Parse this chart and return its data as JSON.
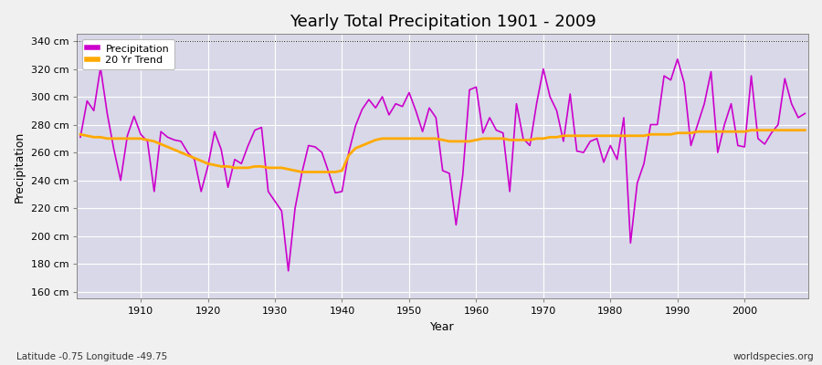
{
  "title": "Yearly Total Precipitation 1901 - 2009",
  "xlabel": "Year",
  "ylabel": "Precipitation",
  "footer_left": "Latitude -0.75 Longitude -49.75",
  "footer_right": "worldspecies.org",
  "ylim": [
    155,
    345
  ],
  "yticks": [
    160,
    180,
    200,
    220,
    240,
    260,
    280,
    300,
    320,
    340
  ],
  "ytick_labels": [
    "160 cm",
    "180 cm",
    "200 cm",
    "220 cm",
    "240 cm",
    "260 cm",
    "280 cm",
    "300 cm",
    "320 cm",
    "340 cm"
  ],
  "xlim": [
    1900.5,
    2009.5
  ],
  "xticks": [
    1910,
    1920,
    1930,
    1940,
    1950,
    1960,
    1970,
    1980,
    1990,
    2000
  ],
  "precip_color": "#cc00cc",
  "trend_color": "#ffaa00",
  "fig_bg": "#f0f0f0",
  "plot_bg": "#d8d8e8",
  "grid_color": "#ffffff",
  "years": [
    1901,
    1902,
    1903,
    1904,
    1905,
    1906,
    1907,
    1908,
    1909,
    1910,
    1911,
    1912,
    1913,
    1914,
    1915,
    1916,
    1917,
    1918,
    1919,
    1920,
    1921,
    1922,
    1923,
    1924,
    1925,
    1926,
    1927,
    1928,
    1929,
    1930,
    1931,
    1932,
    1933,
    1934,
    1935,
    1936,
    1937,
    1938,
    1939,
    1940,
    1941,
    1942,
    1943,
    1944,
    1945,
    1946,
    1947,
    1948,
    1949,
    1950,
    1951,
    1952,
    1953,
    1954,
    1955,
    1956,
    1957,
    1958,
    1959,
    1960,
    1961,
    1962,
    1963,
    1964,
    1965,
    1966,
    1967,
    1968,
    1969,
    1970,
    1971,
    1972,
    1973,
    1974,
    1975,
    1976,
    1977,
    1978,
    1979,
    1980,
    1981,
    1982,
    1983,
    1984,
    1985,
    1986,
    1987,
    1988,
    1989,
    1990,
    1991,
    1992,
    1993,
    1994,
    1995,
    1996,
    1997,
    1998,
    1999,
    2000,
    2001,
    2002,
    2003,
    2004,
    2005,
    2006,
    2007,
    2008,
    2009
  ],
  "precip": [
    271,
    297,
    290,
    321,
    288,
    262,
    240,
    272,
    286,
    273,
    268,
    232,
    275,
    271,
    269,
    268,
    260,
    255,
    232,
    250,
    275,
    262,
    235,
    255,
    252,
    265,
    276,
    278,
    232,
    225,
    218,
    175,
    220,
    245,
    265,
    264,
    260,
    246,
    231,
    232,
    260,
    279,
    291,
    298,
    292,
    300,
    287,
    295,
    293,
    303,
    290,
    275,
    292,
    285,
    247,
    245,
    208,
    244,
    305,
    307,
    274,
    285,
    276,
    274,
    232,
    295,
    270,
    265,
    295,
    320,
    300,
    290,
    268,
    302,
    261,
    260,
    268,
    270,
    253,
    265,
    255,
    285,
    195,
    238,
    252,
    280,
    280,
    315,
    312,
    327,
    310,
    265,
    280,
    295,
    318,
    260,
    280,
    295,
    265,
    264,
    315,
    270,
    266,
    274,
    280,
    313,
    295,
    285,
    288
  ],
  "trend": [
    273,
    272,
    271,
    271,
    270,
    270,
    270,
    270,
    270,
    270,
    269,
    268,
    266,
    264,
    262,
    260,
    258,
    256,
    254,
    252,
    251,
    250,
    250,
    249,
    249,
    249,
    250,
    250,
    249,
    249,
    249,
    248,
    247,
    246,
    246,
    246,
    246,
    246,
    246,
    247,
    258,
    263,
    265,
    267,
    269,
    270,
    270,
    270,
    270,
    270,
    270,
    270,
    270,
    270,
    269,
    268,
    268,
    268,
    268,
    269,
    270,
    270,
    270,
    270,
    269,
    269,
    269,
    269,
    270,
    270,
    271,
    271,
    272,
    272,
    272,
    272,
    272,
    272,
    272,
    272,
    272,
    272,
    272,
    272,
    272,
    273,
    273,
    273,
    273,
    274,
    274,
    274,
    275,
    275,
    275,
    275,
    275,
    275,
    275,
    275,
    276,
    276,
    276,
    276,
    276,
    276,
    276,
    276,
    276
  ]
}
